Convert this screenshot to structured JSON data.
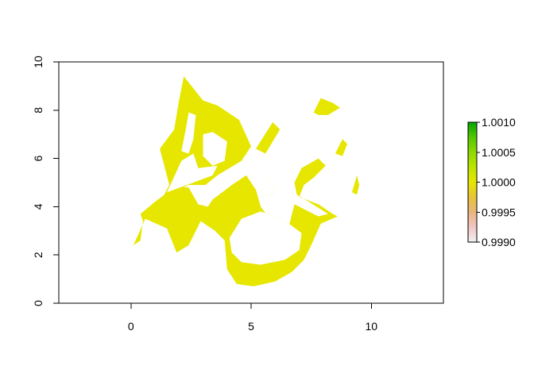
{
  "chart_data": {
    "type": "heatmap",
    "title": "",
    "xlabel": "",
    "ylabel": "",
    "xlim": [
      -3,
      13
    ],
    "ylim": [
      0,
      10
    ],
    "x_ticks": [
      0,
      5,
      10
    ],
    "x_tick_labels": [
      "0",
      "5",
      "10"
    ],
    "y_ticks": [
      0,
      2,
      4,
      6,
      8,
      10
    ],
    "y_tick_labels": [
      "0",
      "2",
      "4",
      "6",
      "8",
      "10"
    ],
    "grid": false,
    "legend_position": "right",
    "raster_value": 1.0,
    "raster_color": "#E6E600",
    "legend": {
      "range": [
        0.999,
        1.001
      ],
      "ticks": [
        0.999,
        0.9995,
        1.0,
        1.0005,
        1.001
      ],
      "tick_labels": [
        "0.9990",
        "0.9995",
        "1.0000",
        "1.0005",
        "1.0010"
      ],
      "colors": [
        "#F2F2F2",
        "#F1C5C5",
        "#E8B67B",
        "#E6C338",
        "#E6E600",
        "#BDE400",
        "#8ED800",
        "#55C700",
        "#00A600"
      ]
    },
    "regions": [
      {
        "name": "main-network",
        "polygon": [
          [
            0.1,
            2.4
          ],
          [
            0.4,
            2.6
          ],
          [
            0.5,
            3.4
          ],
          [
            0.4,
            3.7
          ],
          [
            1.0,
            4.2
          ],
          [
            1.8,
            4.8
          ],
          [
            2.4,
            4.8
          ],
          [
            2.8,
            4.1
          ],
          [
            3.2,
            4.0
          ],
          [
            3.4,
            4.3
          ],
          [
            3.8,
            4.6
          ],
          [
            4.2,
            4.9
          ],
          [
            4.8,
            5.3
          ],
          [
            5.2,
            4.7
          ],
          [
            5.4,
            4.0
          ],
          [
            5.7,
            3.6
          ],
          [
            6.1,
            3.3
          ],
          [
            6.6,
            3.3
          ],
          [
            6.8,
            4.1
          ],
          [
            7.4,
            3.8
          ],
          [
            7.8,
            3.6
          ],
          [
            8.2,
            3.7
          ],
          [
            7.4,
            4.2
          ],
          [
            6.9,
            4.5
          ],
          [
            6.8,
            5.0
          ],
          [
            7.1,
            5.6
          ],
          [
            7.8,
            6.0
          ],
          [
            8.1,
            5.7
          ],
          [
            7.6,
            5.2
          ],
          [
            7.2,
            4.9
          ],
          [
            7.0,
            4.4
          ],
          [
            7.8,
            4.1
          ],
          [
            8.4,
            3.7
          ],
          [
            8.6,
            3.6
          ],
          [
            7.9,
            3.3
          ],
          [
            7.5,
            2.4
          ],
          [
            7.2,
            1.8
          ],
          [
            6.7,
            1.3
          ],
          [
            6.0,
            0.9
          ],
          [
            5.1,
            0.7
          ],
          [
            4.4,
            0.8
          ],
          [
            4.0,
            1.4
          ],
          [
            3.9,
            2.6
          ],
          [
            3.5,
            3.0
          ],
          [
            2.9,
            3.4
          ],
          [
            2.4,
            2.4
          ],
          [
            1.9,
            2.1
          ],
          [
            1.7,
            2.6
          ],
          [
            1.5,
            3.1
          ],
          [
            0.6,
            3.5
          ]
        ]
      },
      {
        "name": "upper-loop",
        "polygon": [
          [
            0.9,
            3.6
          ],
          [
            1.6,
            4.9
          ],
          [
            1.2,
            6.4
          ],
          [
            1.8,
            7.2
          ],
          [
            2.0,
            8.4
          ],
          [
            2.2,
            9.4
          ],
          [
            2.6,
            8.9
          ],
          [
            3.0,
            8.4
          ],
          [
            3.6,
            8.2
          ],
          [
            4.5,
            7.6
          ],
          [
            5.0,
            6.5
          ],
          [
            4.6,
            5.9
          ],
          [
            3.6,
            5.3
          ],
          [
            3.1,
            4.9
          ],
          [
            2.4,
            4.9
          ],
          [
            1.8,
            4.6
          ]
        ]
      },
      {
        "name": "upper-right-blob",
        "polygon": [
          [
            7.6,
            7.9
          ],
          [
            7.9,
            8.5
          ],
          [
            8.4,
            8.3
          ],
          [
            8.7,
            8.1
          ],
          [
            8.2,
            7.8
          ],
          [
            7.8,
            7.8
          ]
        ]
      },
      {
        "name": "small-right-blob",
        "polygon": [
          [
            8.5,
            6.2
          ],
          [
            8.8,
            6.8
          ],
          [
            9.0,
            6.6
          ],
          [
            8.8,
            6.1
          ]
        ]
      },
      {
        "name": "far-right-blob",
        "polygon": [
          [
            9.2,
            4.6
          ],
          [
            9.4,
            5.3
          ],
          [
            9.5,
            4.9
          ],
          [
            9.4,
            4.5
          ]
        ]
      },
      {
        "name": "center-stroke",
        "polygon": [
          [
            5.2,
            6.4
          ],
          [
            5.9,
            7.5
          ],
          [
            6.2,
            7.2
          ],
          [
            5.6,
            6.2
          ]
        ]
      }
    ],
    "holes": [
      {
        "name": "hole-left-upper",
        "polygon": [
          [
            2.1,
            6.3
          ],
          [
            2.3,
            7.3
          ],
          [
            2.4,
            7.9
          ],
          [
            2.7,
            7.8
          ],
          [
            2.6,
            6.8
          ],
          [
            2.4,
            6.2
          ]
        ]
      },
      {
        "name": "hole-upper-right",
        "polygon": [
          [
            3.0,
            7.0
          ],
          [
            3.4,
            7.1
          ],
          [
            4.0,
            6.7
          ],
          [
            3.9,
            5.9
          ],
          [
            3.4,
            5.7
          ],
          [
            3.0,
            6.1
          ]
        ]
      },
      {
        "name": "hole-left-middle",
        "polygon": [
          [
            1.5,
            4.6
          ],
          [
            2.6,
            5.0
          ],
          [
            3.4,
            5.3
          ],
          [
            3.6,
            5.7
          ],
          [
            2.8,
            5.6
          ],
          [
            2.6,
            6.2
          ],
          [
            2.1,
            5.9
          ]
        ]
      },
      {
        "name": "hole-bottom-small",
        "polygon": [
          [
            2.6,
            2.5
          ],
          [
            2.9,
            2.6
          ],
          [
            2.8,
            2.8
          ],
          [
            2.6,
            2.7
          ]
        ]
      },
      {
        "name": "hole-large-center",
        "polygon": [
          [
            4.1,
            2.7
          ],
          [
            4.6,
            3.5
          ],
          [
            5.4,
            3.8
          ],
          [
            6.3,
            3.5
          ],
          [
            7.1,
            2.9
          ],
          [
            7.0,
            2.2
          ],
          [
            6.4,
            1.8
          ],
          [
            5.4,
            1.6
          ],
          [
            4.6,
            1.7
          ],
          [
            4.2,
            2.1
          ]
        ]
      },
      {
        "name": "hole-center-small",
        "polygon": [
          [
            5.3,
            4.4
          ],
          [
            5.7,
            5.1
          ],
          [
            6.0,
            5.0
          ],
          [
            5.9,
            4.5
          ]
        ]
      }
    ]
  }
}
